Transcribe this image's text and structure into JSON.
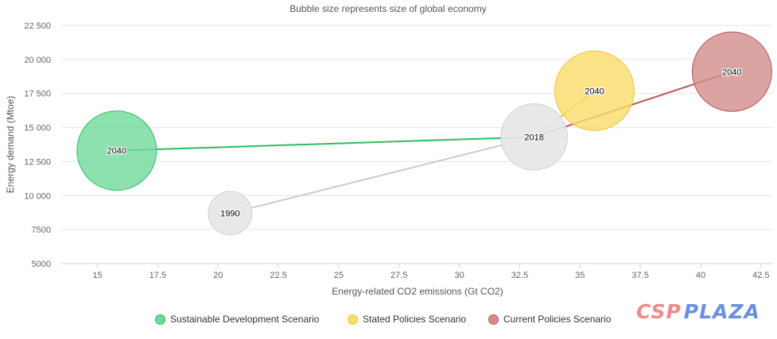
{
  "chart_data": {
    "type": "scatter",
    "title": "Bubble size represents size of global economy",
    "xlabel": "Energy-related CO2 emissions (Gt CO2)",
    "ylabel": "Energy demand (Mtoe)",
    "xlim": [
      13.5,
      43.0
    ],
    "ylim": [
      5000,
      22500
    ],
    "x_ticks": [
      15,
      17.5,
      20,
      22.5,
      25,
      27.5,
      30,
      32.5,
      35,
      37.5,
      40,
      42.5
    ],
    "x_tick_labels": [
      "15",
      "17.5",
      "20",
      "22.5",
      "25",
      "27.5",
      "30",
      "32.5",
      "35",
      "37.5",
      "40",
      "42.5"
    ],
    "y_ticks": [
      5000,
      7500,
      10000,
      12500,
      15000,
      17500,
      20000,
      22500
    ],
    "y_tick_labels": [
      "5000",
      "7500",
      "10 000",
      "12 500",
      "15 000",
      "17 500",
      "20 000",
      "22 500"
    ],
    "legend_position": "bottom",
    "base_points": [
      {
        "label": "1990",
        "x": 20.5,
        "y": 8700,
        "size": 15,
        "color": "#e6e6e9"
      },
      {
        "label": "2018",
        "x": 33.1,
        "y": 14300,
        "size": 35,
        "color": "#e6e6e9"
      }
    ],
    "historical_line": {
      "color": "#cfc9d2",
      "points": [
        [
          20.5,
          8700
        ],
        [
          33.1,
          14300
        ]
      ]
    },
    "series": [
      {
        "name": "Sustainable Development Scenario",
        "color": "#2ebd60",
        "fill": "#6fd99a",
        "points": [
          {
            "label": "2018",
            "x": 33.1,
            "y": 14300
          },
          {
            "label": "2040",
            "x": 15.8,
            "y": 13300,
            "size": 50
          }
        ]
      },
      {
        "name": "Stated Policies Scenario",
        "color": "#f1c232",
        "fill": "#fddc6a",
        "points": [
          {
            "label": "2018",
            "x": 33.1,
            "y": 14300
          },
          {
            "label": "2040",
            "x": 35.6,
            "y": 17700,
            "size": 50
          }
        ]
      },
      {
        "name": "Current Policies Scenario",
        "color": "#b85454",
        "fill": "#d38c8c",
        "points": [
          {
            "label": "2018",
            "x": 33.1,
            "y": 14300
          },
          {
            "label": "2040",
            "x": 41.3,
            "y": 19100,
            "size": 50
          }
        ]
      }
    ]
  },
  "watermark": {
    "part1": "CSP",
    "part2": "PLAZA"
  }
}
